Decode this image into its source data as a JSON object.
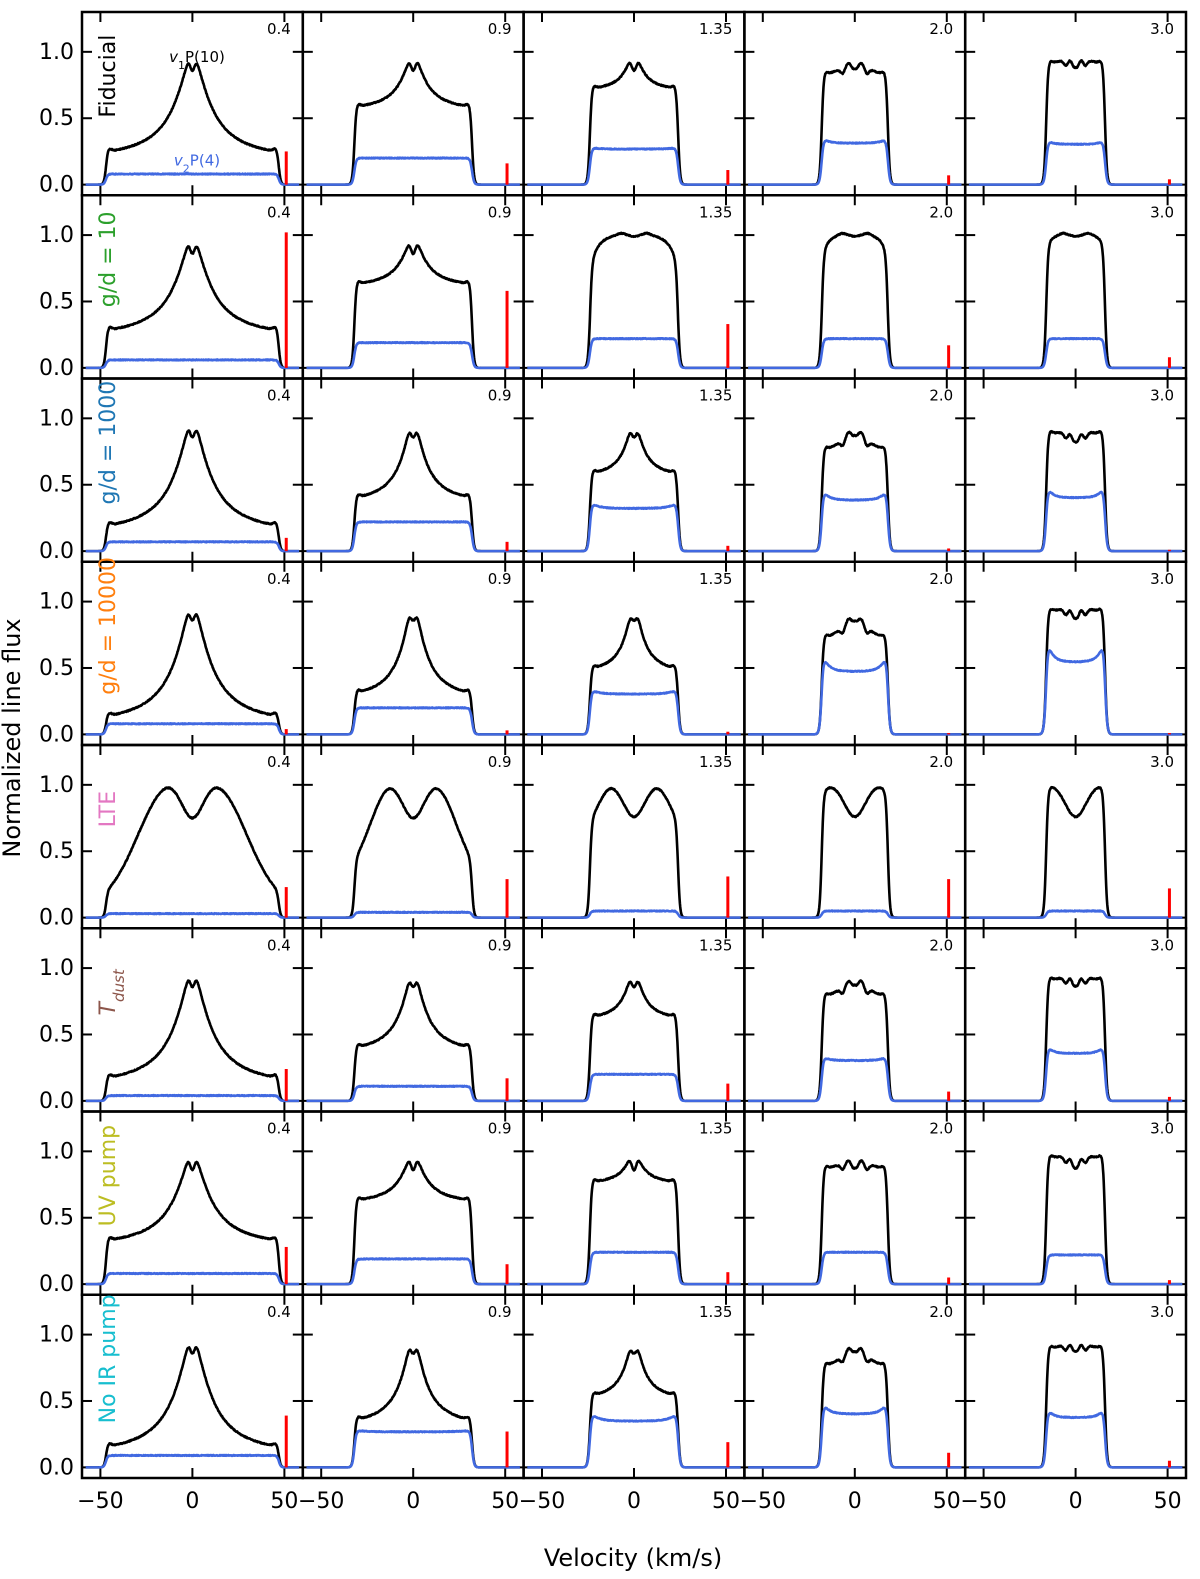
{
  "figure": {
    "xlabel": "Velocity (km/s)",
    "ylabel": "Normalized line flux"
  },
  "colors": {
    "black_line": "#000000",
    "blue_line": "#4169e1",
    "marker": "#ff0000",
    "row_labels": [
      "#000000",
      "#2ca02c",
      "#1f77b4",
      "#ff7f0e",
      "#e377c2",
      "#8c564b",
      "#bcbd22",
      "#17becf"
    ]
  },
  "chart_data": {
    "type": "line",
    "layout": "grid",
    "rows": 8,
    "columns": 5,
    "xlim": [
      -60,
      60
    ],
    "ylim": [
      -0.08,
      1.3
    ],
    "xticks": [
      -50,
      0,
      50
    ],
    "yticks": [
      0.0,
      0.5,
      1.0
    ],
    "ytick_labels": [
      "0.0",
      "0.5",
      "1.0"
    ],
    "column_labels": [
      "0.4",
      "0.9",
      "1.35",
      "2.0",
      "3.0"
    ],
    "row_labels": [
      "Fiducial",
      "g/d = 10",
      "g/d = 1000",
      "g/d = 10000",
      "LTE",
      "T",
      "UV pump",
      "No IR pump"
    ],
    "row_label_subscripts": [
      "",
      "",
      "",
      "",
      "",
      "dust",
      "",
      ""
    ],
    "series_names": {
      "black": {
        "v": "v",
        "sub": "1",
        "rest": "P(10)"
      },
      "blue": {
        "v": "v",
        "sub": "2",
        "rest": "P(4)"
      }
    },
    "v_edge": [
      47,
      32,
      24,
      18,
      16
    ],
    "panels": [
      [
        {
          "peak_shape": "double",
          "peak_sep": 3.5,
          "center": 1.0,
          "plateau": 0.18,
          "dip": 0.03,
          "blue": 0.08,
          "marker": 0.25
        },
        {
          "peak_shape": "double",
          "peak_sep": 3.5,
          "center": 1.0,
          "plateau": 0.55,
          "dip": 0.03,
          "blue": 0.2,
          "marker": 0.16
        },
        {
          "peak_shape": "double",
          "peak_sep": 3.5,
          "center": 1.0,
          "plateau": 0.7,
          "dip": 0.03,
          "blue": 0.27,
          "marker": 0.11
        },
        {
          "peak_shape": "triple",
          "peak_sep": 5,
          "center": 0.98,
          "plateau": 0.8,
          "dip": 0.05,
          "blue": 0.32,
          "marker": 0.07
        },
        {
          "peak_shape": "triple",
          "peak_sep": 4,
          "center": 0.99,
          "plateau": 0.9,
          "dip": 0.03,
          "blue": 0.31,
          "marker": 0.04
        }
      ],
      [
        {
          "peak_shape": "double",
          "peak_sep": 3.5,
          "center": 1.0,
          "plateau": 0.22,
          "dip": 0.03,
          "blue": 0.06,
          "marker": 1.02
        },
        {
          "peak_shape": "double",
          "peak_sep": 3.5,
          "center": 1.0,
          "plateau": 0.6,
          "dip": 0.03,
          "blue": 0.19,
          "marker": 0.58
        },
        {
          "peak_shape": "round",
          "peak_sep": 3.5,
          "center": 1.0,
          "plateau": 0.7,
          "dip": 0.02,
          "blue": 0.22,
          "marker": 0.33
        },
        {
          "peak_shape": "round",
          "peak_sep": 3.5,
          "center": 1.0,
          "plateau": 0.8,
          "dip": 0.02,
          "blue": 0.22,
          "marker": 0.17
        },
        {
          "peak_shape": "round",
          "peak_sep": 3.5,
          "center": 1.0,
          "plateau": 0.9,
          "dip": 0.02,
          "blue": 0.22,
          "marker": 0.08
        }
      ],
      [
        {
          "peak_shape": "double",
          "peak_sep": 3.5,
          "center": 1.0,
          "plateau": 0.12,
          "dip": 0.03,
          "blue": 0.07,
          "marker": 0.1
        },
        {
          "peak_shape": "double",
          "peak_sep": 3.5,
          "center": 1.0,
          "plateau": 0.35,
          "dip": 0.03,
          "blue": 0.22,
          "marker": 0.07
        },
        {
          "peak_shape": "double",
          "peak_sep": 3.5,
          "center": 1.0,
          "plateau": 0.55,
          "dip": 0.03,
          "blue": 0.33,
          "marker": 0.04
        },
        {
          "peak_shape": "triple",
          "peak_sep": 5,
          "center": 0.98,
          "plateau": 0.72,
          "dip": 0.05,
          "blue": 0.4,
          "marker": 0.02
        },
        {
          "peak_shape": "triple",
          "peak_sep": 4,
          "center": 0.92,
          "plateau": 0.88,
          "dip": 0.03,
          "blue": 0.42,
          "marker": 0.01
        }
      ],
      [
        {
          "peak_shape": "double",
          "peak_sep": 3.5,
          "center": 1.0,
          "plateau": 0.06,
          "dip": 0.03,
          "blue": 0.08,
          "marker": 0.04
        },
        {
          "peak_shape": "double",
          "peak_sep": 3.5,
          "center": 1.0,
          "plateau": 0.25,
          "dip": 0.03,
          "blue": 0.2,
          "marker": 0.03
        },
        {
          "peak_shape": "double",
          "peak_sep": 3.5,
          "center": 1.0,
          "plateau": 0.45,
          "dip": 0.03,
          "blue": 0.31,
          "marker": 0.02
        },
        {
          "peak_shape": "triple",
          "peak_sep": 5,
          "center": 0.96,
          "plateau": 0.68,
          "dip": 0.05,
          "blue": 0.5,
          "marker": 0.01
        },
        {
          "peak_shape": "triple",
          "peak_sep": 4,
          "center": 0.98,
          "plateau": 0.92,
          "dip": 0.03,
          "blue": 0.58,
          "marker": 0.01
        }
      ],
      [
        {
          "peak_shape": "lte",
          "peak_sep": 10,
          "center": 1.0,
          "plateau": 0.1,
          "dip": 0.25,
          "blue": 0.03,
          "marker": 0.23
        },
        {
          "peak_shape": "lte",
          "peak_sep": 10,
          "center": 1.0,
          "plateau": 0.3,
          "dip": 0.25,
          "blue": 0.04,
          "marker": 0.29
        },
        {
          "peak_shape": "lte",
          "peak_sep": 10,
          "center": 1.0,
          "plateau": 0.6,
          "dip": 0.24,
          "blue": 0.05,
          "marker": 0.31
        },
        {
          "peak_shape": "lte",
          "peak_sep": 10,
          "center": 1.0,
          "plateau": 0.9,
          "dip": 0.24,
          "blue": 0.05,
          "marker": 0.29
        },
        {
          "peak_shape": "lte",
          "peak_sep": 10,
          "center": 1.0,
          "plateau": 0.98,
          "dip": 0.24,
          "blue": 0.05,
          "marker": 0.22
        }
      ],
      [
        {
          "peak_shape": "double",
          "peak_sep": 3.5,
          "center": 1.0,
          "plateau": 0.1,
          "dip": 0.03,
          "blue": 0.04,
          "marker": 0.24
        },
        {
          "peak_shape": "double",
          "peak_sep": 3.5,
          "center": 1.0,
          "plateau": 0.35,
          "dip": 0.03,
          "blue": 0.11,
          "marker": 0.17
        },
        {
          "peak_shape": "double",
          "peak_sep": 3.5,
          "center": 1.0,
          "plateau": 0.6,
          "dip": 0.03,
          "blue": 0.2,
          "marker": 0.13
        },
        {
          "peak_shape": "triple",
          "peak_sep": 5,
          "center": 0.98,
          "plateau": 0.75,
          "dip": 0.05,
          "blue": 0.31,
          "marker": 0.07
        },
        {
          "peak_shape": "triple",
          "peak_sep": 4,
          "center": 0.97,
          "plateau": 0.9,
          "dip": 0.03,
          "blue": 0.37,
          "marker": 0.03
        }
      ],
      [
        {
          "peak_shape": "double",
          "peak_sep": 3.5,
          "center": 1.0,
          "plateau": 0.27,
          "dip": 0.03,
          "blue": 0.08,
          "marker": 0.28
        },
        {
          "peak_shape": "double",
          "peak_sep": 3.5,
          "center": 1.0,
          "plateau": 0.6,
          "dip": 0.03,
          "blue": 0.19,
          "marker": 0.15
        },
        {
          "peak_shape": "double",
          "peak_sep": 3.5,
          "center": 1.0,
          "plateau": 0.75,
          "dip": 0.03,
          "blue": 0.24,
          "marker": 0.09
        },
        {
          "peak_shape": "triple",
          "peak_sep": 5,
          "center": 0.98,
          "plateau": 0.85,
          "dip": 0.05,
          "blue": 0.24,
          "marker": 0.05
        },
        {
          "peak_shape": "triple",
          "peak_sep": 4,
          "center": 0.98,
          "plateau": 0.95,
          "dip": 0.03,
          "blue": 0.22,
          "marker": 0.03
        }
      ],
      [
        {
          "peak_shape": "double",
          "peak_sep": 3.5,
          "center": 1.0,
          "plateau": 0.08,
          "dip": 0.03,
          "blue": 0.09,
          "marker": 0.39
        },
        {
          "peak_shape": "double",
          "peak_sep": 3.5,
          "center": 1.0,
          "plateau": 0.3,
          "dip": 0.03,
          "blue": 0.27,
          "marker": 0.27
        },
        {
          "peak_shape": "double",
          "peak_sep": 3.5,
          "center": 1.0,
          "plateau": 0.5,
          "dip": 0.03,
          "blue": 0.36,
          "marker": 0.19
        },
        {
          "peak_shape": "triple",
          "peak_sep": 5,
          "center": 0.98,
          "plateau": 0.72,
          "dip": 0.05,
          "blue": 0.42,
          "marker": 0.11
        },
        {
          "peak_shape": "triple",
          "peak_sep": 4,
          "center": 0.98,
          "plateau": 0.88,
          "dip": 0.03,
          "blue": 0.39,
          "marker": 0.05
        }
      ]
    ]
  }
}
